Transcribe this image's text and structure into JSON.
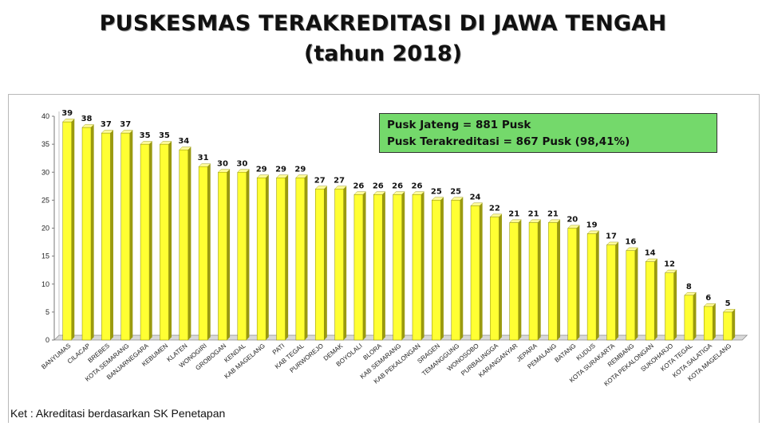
{
  "title_line1": "PUSKESMAS TERAKREDITASI DI JAWA TENGAH",
  "title_line2": "(tahun 2018)",
  "info_box": {
    "line1": "Pusk Jateng = 881 Pusk",
    "line2": "Pusk Terakreditasi = 867 Pusk (98,41%)"
  },
  "note": "Ket : Akreditasi berdasarkan SK Penetapan",
  "colors": {
    "bar_fill": "#ffff33",
    "bar_top": "#fffb9a",
    "bar_side": "#9a9a10",
    "info_bg": "#74d96b"
  },
  "chart_data": {
    "type": "bar",
    "title": "PUSKESMAS TERAKREDITASI DI JAWA TENGAH (tahun 2018)",
    "xlabel": "",
    "ylabel": "",
    "ylim": [
      0,
      40
    ],
    "yticks": [
      0,
      5,
      10,
      15,
      20,
      25,
      30,
      35,
      40
    ],
    "grid": false,
    "categories": [
      "BANYUMAS",
      "CILACAP",
      "BREBES",
      "KOTA SEMARANG",
      "BANJARNEGARA",
      "KEBUMEN",
      "KLATEN",
      "WONOGIRI",
      "GROBOGAN",
      "KENDAL",
      "KAB MAGELANG",
      "PATI",
      "KAB TEGAL",
      "PURWOREJO",
      "DEMAK",
      "BOYOLALI",
      "BLORA",
      "KAB SEMARANG",
      "KAB PEKALONGAN",
      "SRAGEN",
      "TEMANGGUNG",
      "WONOSOBO",
      "PURBALINGGA",
      "KARANGANYAR",
      "JEPARA",
      "PEMALANG",
      "BATANG",
      "KUDUS",
      "KOTA SURAKARTA",
      "REMBANG",
      "KOTA PEKALONGAN",
      "SUKOHARJO",
      "KOTA TEGAL",
      "KOTA SALATIGA",
      "KOTA MAGELANG"
    ],
    "values": [
      39,
      38,
      37,
      37,
      35,
      35,
      34,
      31,
      30,
      30,
      29,
      29,
      29,
      27,
      27,
      26,
      26,
      26,
      26,
      25,
      25,
      24,
      22,
      21,
      21,
      21,
      20,
      19,
      17,
      16,
      14,
      12,
      8,
      6,
      5
    ]
  }
}
